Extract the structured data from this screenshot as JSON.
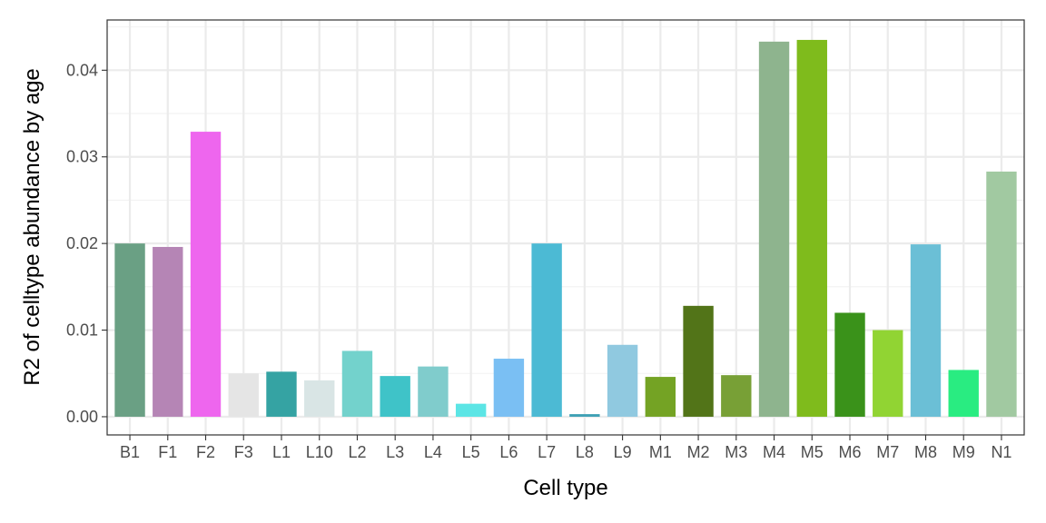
{
  "chart_data": {
    "type": "bar",
    "title": "",
    "xlabel": "Cell type",
    "ylabel": "R2 of celltype abundance by age",
    "ylim": [
      -0.0021,
      0.0458
    ],
    "yticks": [
      0.0,
      0.01,
      0.02,
      0.03,
      0.04
    ],
    "ytick_labels": [
      "0.00",
      "0.01",
      "0.02",
      "0.03",
      "0.04"
    ],
    "grid": true,
    "legend": "none",
    "categories": [
      "B1",
      "F1",
      "F2",
      "F3",
      "L1",
      "L10",
      "L2",
      "L3",
      "L4",
      "L5",
      "L6",
      "L7",
      "L8",
      "L9",
      "M1",
      "M2",
      "M3",
      "M4",
      "M5",
      "M6",
      "M7",
      "M8",
      "M9",
      "N1"
    ],
    "values": [
      0.02,
      0.0196,
      0.0329,
      0.005,
      0.0052,
      0.0042,
      0.0076,
      0.0047,
      0.0058,
      0.0015,
      0.0067,
      0.02,
      0.0003,
      0.0083,
      0.0046,
      0.0128,
      0.0048,
      0.0433,
      0.0435,
      0.012,
      0.01,
      0.0199,
      0.0054,
      0.0283
    ],
    "colors": [
      "#6aa084",
      "#b585b5",
      "#ee66ee",
      "#e5e5e5",
      "#35a3a3",
      "#d9e5e5",
      "#73d2cc",
      "#3fc3c8",
      "#80cccc",
      "#5ce5e5",
      "#7abff3",
      "#4cbad4",
      "#3ea0b4",
      "#90c9e0",
      "#74a324",
      "#527418",
      "#78a036",
      "#8eb48e",
      "#7fbb1c",
      "#3a921a",
      "#91d433",
      "#6bbfd6",
      "#29ec81",
      "#a1c9a1"
    ]
  }
}
